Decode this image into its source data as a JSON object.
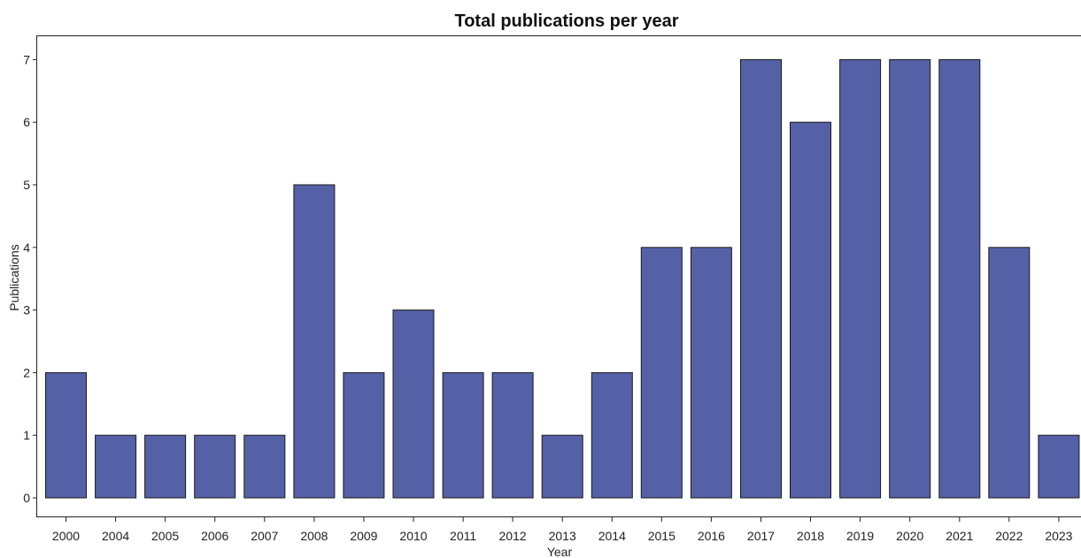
{
  "chart_data": {
    "type": "bar",
    "title": "Total publications per year",
    "xlabel": "Year",
    "ylabel": "Publications",
    "categories": [
      "2000",
      "2004",
      "2005",
      "2006",
      "2007",
      "2008",
      "2009",
      "2010",
      "2011",
      "2012",
      "2013",
      "2014",
      "2015",
      "2016",
      "2017",
      "2018",
      "2019",
      "2020",
      "2021",
      "2022",
      "2023"
    ],
    "values": [
      2,
      1,
      1,
      1,
      1,
      5,
      2,
      3,
      2,
      2,
      1,
      2,
      4,
      4,
      7,
      6,
      7,
      7,
      7,
      4,
      1
    ],
    "ylim": [
      0,
      7
    ],
    "yticks": [
      0,
      1,
      2,
      3,
      4,
      5,
      6,
      7
    ],
    "grid": false,
    "legend": "none",
    "bar_color": "#5561a6"
  }
}
